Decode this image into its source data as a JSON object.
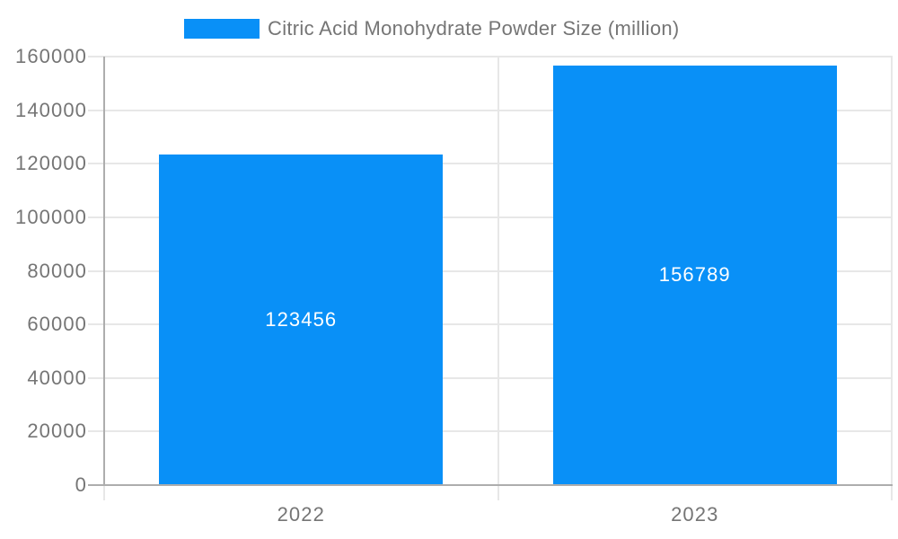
{
  "chart_data": {
    "type": "bar",
    "title": "Citric Acid Monohydrate Powder Size (million)",
    "categories": [
      "2022",
      "2023"
    ],
    "values": [
      123456,
      156789
    ],
    "value_labels": [
      "123456",
      "156789"
    ],
    "ytick_labels": [
      "0",
      "20000",
      "40000",
      "60000",
      "80000",
      "100000",
      "120000",
      "140000",
      "160000"
    ],
    "ylim": [
      0,
      160000
    ],
    "ytick_step": 20000,
    "xlabel": "",
    "ylabel": "",
    "grid": true,
    "legend_position": "top",
    "value_label_position": "inside-center"
  },
  "legend": {
    "label": "Citric Acid Monohydrate Powder Size (million)"
  },
  "colors": {
    "bar": "#0990f7",
    "grid": "#e7e7e7",
    "axis": "#adadad",
    "text": "#757575",
    "value_text": "#ffffff",
    "background": "#ffffff"
  }
}
